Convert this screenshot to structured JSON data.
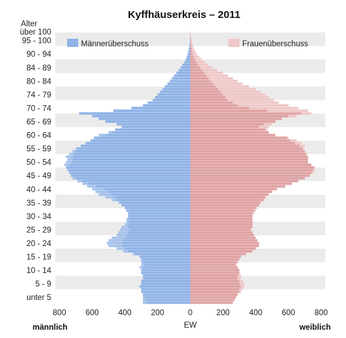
{
  "chart_data": {
    "type": "bar",
    "title": "Kyffhäuserkreis – 2011",
    "y_axis_title": "Alter",
    "x_axis_title": "EW",
    "left_label": "männlich",
    "right_label": "weiblich",
    "x_ticks": [
      "800",
      "600",
      "400",
      "200",
      "0",
      "200",
      "400",
      "600",
      "800"
    ],
    "xlim": [
      -800,
      800
    ],
    "y_ticks": [
      "über 100",
      "95 - 100",
      "90 - 94",
      "84 - 89",
      "80 - 84",
      "74 - 79",
      "70 - 74",
      "65 - 69",
      "60 - 64",
      "55 - 59",
      "50 - 54",
      "45 - 49",
      "40 - 44",
      "35 - 39",
      "30 - 34",
      "25 - 29",
      "20 - 24",
      "15 - 19",
      "10 - 14",
      "5 - 9",
      "unter 5"
    ],
    "legend": {
      "placement": "top",
      "male_surplus": "Männerüberschuss",
      "female_surplus": "Frauenüberschuss"
    },
    "grid": "alternating horizontal bands",
    "colors": {
      "male": "#8fb3e6",
      "male_surplus": "#bcd0ef",
      "female": "#e0a3a3",
      "female_surplus": "#efc8c8",
      "band": "#ebebeb"
    },
    "ages": [
      100,
      99,
      98,
      97,
      96,
      95,
      94,
      93,
      92,
      91,
      90,
      89,
      88,
      87,
      86,
      85,
      84,
      83,
      82,
      81,
      80,
      79,
      78,
      77,
      76,
      75,
      74,
      73,
      72,
      71,
      70,
      69,
      68,
      67,
      66,
      65,
      64,
      63,
      62,
      61,
      60,
      59,
      58,
      57,
      56,
      55,
      54,
      53,
      52,
      51,
      50,
      49,
      48,
      47,
      46,
      45,
      44,
      43,
      42,
      41,
      40,
      39,
      38,
      37,
      36,
      35,
      34,
      33,
      32,
      31,
      30,
      29,
      28,
      27,
      26,
      25,
      24,
      23,
      22,
      21,
      20,
      19,
      18,
      17,
      16,
      15,
      14,
      13,
      12,
      11,
      10,
      9,
      8,
      7,
      6,
      5,
      4,
      3,
      2,
      1,
      0
    ],
    "series": [
      {
        "name": "männlich",
        "values": [
          1,
          1,
          2,
          3,
          4,
          6,
          9,
          12,
          16,
          22,
          28,
          36,
          48,
          60,
          72,
          85,
          100,
          112,
          125,
          140,
          155,
          170,
          185,
          200,
          215,
          230,
          260,
          290,
          360,
          470,
          680,
          600,
          560,
          520,
          450,
          420,
          460,
          500,
          560,
          590,
          610,
          640,
          670,
          700,
          720,
          740,
          760,
          750,
          760,
          770,
          760,
          750,
          740,
          730,
          720,
          690,
          660,
          630,
          600,
          580,
          560,
          520,
          480,
          440,
          420,
          400,
          390,
          380,
          380,
          390,
          390,
          400,
          420,
          430,
          440,
          450,
          480,
          500,
          510,
          500,
          450,
          410,
          350,
          310,
          300,
          300,
          300,
          310,
          300,
          300,
          290,
          290,
          300,
          300,
          310,
          300,
          300,
          290,
          290,
          290,
          290
        ]
      },
      {
        "name": "weiblich",
        "values": [
          2,
          3,
          6,
          9,
          12,
          16,
          22,
          30,
          40,
          55,
          70,
          90,
          110,
          135,
          165,
          200,
          230,
          260,
          290,
          320,
          360,
          400,
          430,
          460,
          480,
          510,
          540,
          600,
          660,
          720,
          740,
          650,
          560,
          520,
          500,
          480,
          470,
          480,
          520,
          600,
          650,
          680,
          700,
          690,
          700,
          710,
          720,
          720,
          720,
          740,
          760,
          760,
          750,
          730,
          700,
          660,
          620,
          580,
          530,
          500,
          480,
          460,
          450,
          430,
          420,
          410,
          400,
          390,
          380,
          380,
          380,
          380,
          380,
          370,
          380,
          390,
          400,
          410,
          420,
          420,
          400,
          380,
          340,
          310,
          300,
          290,
          280,
          290,
          300,
          300,
          310,
          310,
          320,
          330,
          330,
          320,
          310,
          290,
          280,
          270,
          260
        ]
      }
    ]
  }
}
